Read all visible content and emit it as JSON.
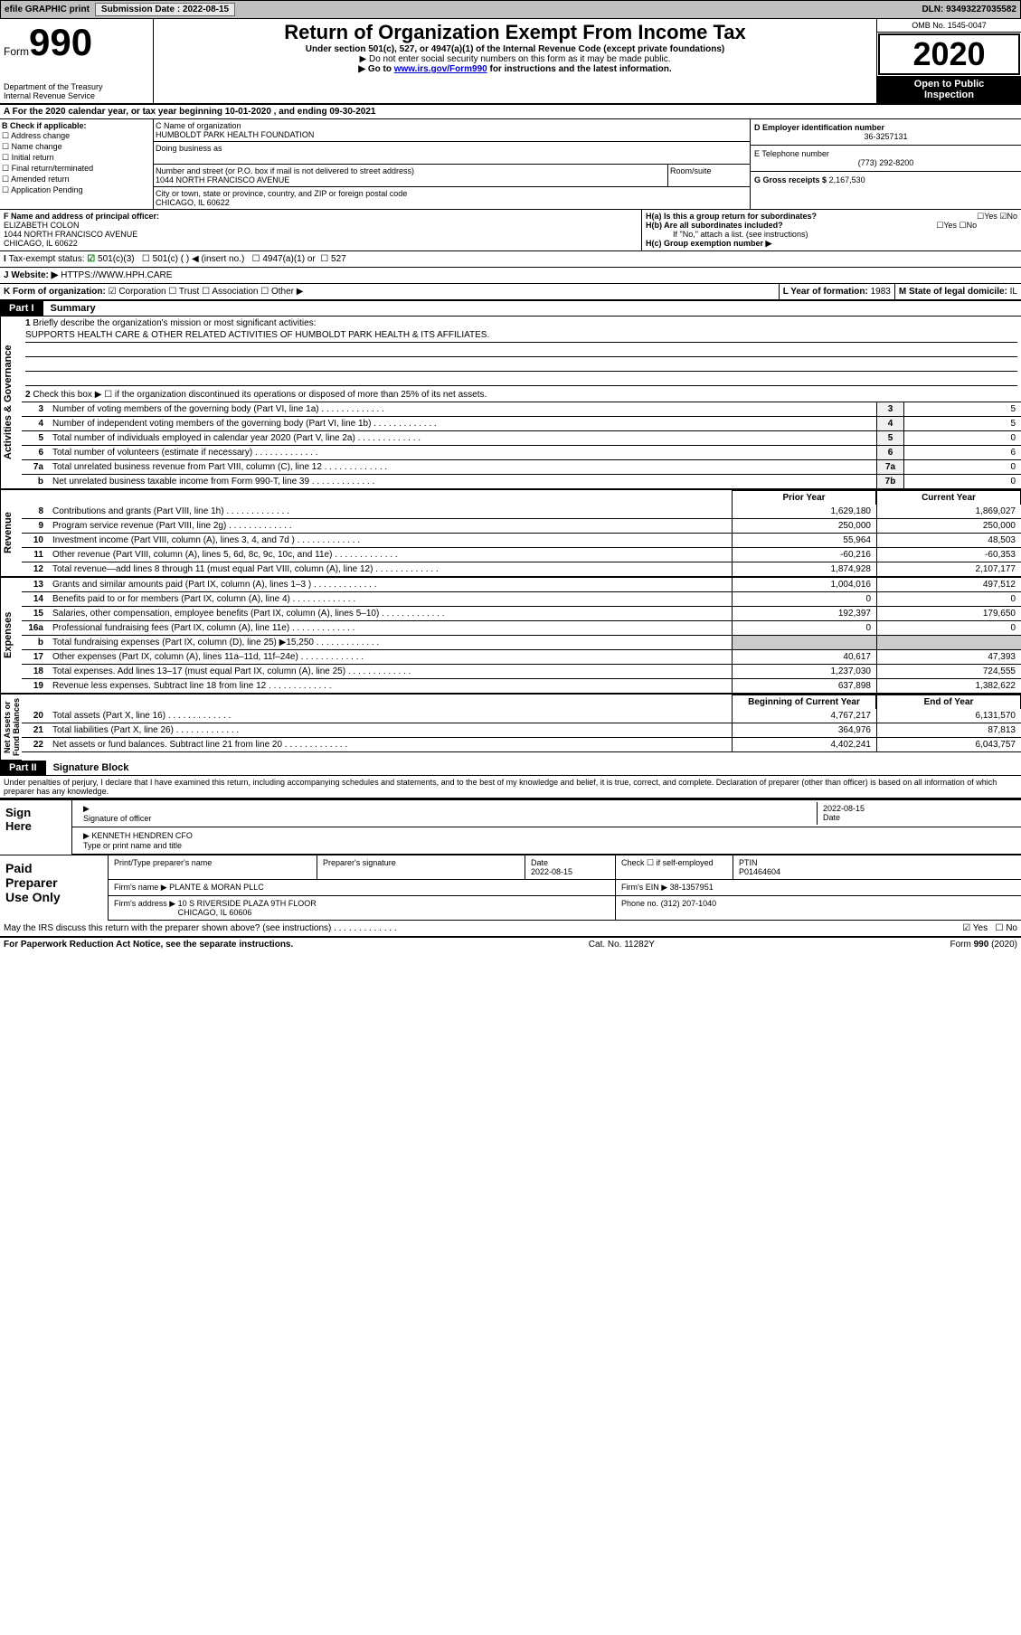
{
  "topbar": {
    "efile": "efile GRAPHIC print",
    "submission_label": "Submission Date :",
    "submission_date": "2022-08-15",
    "dln_label": "DLN:",
    "dln": "93493227035582"
  },
  "header": {
    "form_word": "Form",
    "form_number": "990",
    "title": "Return of Organization Exempt From Income Tax",
    "subtitle": "Under section 501(c), 527, or 4947(a)(1) of the Internal Revenue Code (except private foundations)",
    "note1": "▶ Do not enter social security numbers on this form as it may be made public.",
    "note2_prefix": "▶ Go to ",
    "note2_link": "www.irs.gov/Form990",
    "note2_suffix": " for instructions and the latest information.",
    "dept": "Department of the Treasury\nInternal Revenue Service",
    "omb": "OMB No. 1545-0047",
    "year": "2020",
    "open": "Open to Public\nInspection"
  },
  "row_a": "For the 2020 calendar year, or tax year beginning 10-01-2020  , and ending 09-30-2021",
  "section_b": {
    "label": "B Check if applicable:",
    "cb1": "Address change",
    "cb2": "Name change",
    "cb3": "Initial return",
    "cb4": "Final return/terminated",
    "cb5": "Amended return",
    "cb6": "Application Pending"
  },
  "section_c": {
    "name_label": "C Name of organization",
    "name": "HUMBOLDT PARK HEALTH FOUNDATION",
    "dba_label": "Doing business as",
    "addr_label": "Number and street (or P.O. box if mail is not delivered to street address)",
    "room_label": "Room/suite",
    "addr": "1044 NORTH FRANCISCO AVENUE",
    "city_label": "City or town, state or province, country, and ZIP or foreign postal code",
    "city": "CHICAGO, IL  60622"
  },
  "section_d": {
    "label": "D Employer identification number",
    "val": "36-3257131"
  },
  "section_e": {
    "label": "E Telephone number",
    "val": "(773) 292-8200"
  },
  "section_g": {
    "label": "G Gross receipts $",
    "val": "2,167,530"
  },
  "section_f": {
    "label": "F Name and address of principal officer:",
    "name": "ELIZABETH COLON",
    "addr": "1044 NORTH FRANCISCO AVENUE\nCHICAGO, IL  60622"
  },
  "section_h": {
    "ha": "H(a)  Is this a group return for subordinates?",
    "ha_yes": "Yes",
    "ha_no": "No",
    "hb": "H(b)  Are all subordinates included?",
    "hb_yes": "Yes",
    "hb_no": "No",
    "hb_note": "If \"No,\" attach a list. (see instructions)",
    "hc": "H(c)  Group exemption number ▶"
  },
  "row_i": {
    "label": "Tax-exempt status:",
    "c1": "501(c)(3)",
    "c2": "501(c) (  ) ◀ (insert no.)",
    "c3": "4947(a)(1) or",
    "c4": "527"
  },
  "row_j": {
    "label": "J",
    "text": "Website: ▶",
    "val": "HTTPS://WWW.HPH.CARE"
  },
  "row_k": {
    "label": "K Form of organization:",
    "c1": "Corporation",
    "c2": "Trust",
    "c3": "Association",
    "c4": "Other ▶",
    "l_label": "L Year of formation:",
    "l_val": "1983",
    "m_label": "M State of legal domicile:",
    "m_val": "IL"
  },
  "part1": {
    "header": "Part I",
    "title": "Summary",
    "line1_label": "1",
    "line1_text": "Briefly describe the organization's mission or most significant activities:",
    "line1_val": "SUPPORTS HEALTH CARE & OTHER RELATED ACTIVITIES OF HUMBOLDT PARK HEALTH & ITS AFFILIATES.",
    "line2_label": "2",
    "line2_text": "Check this box ▶ ☐  if the organization discontinued its operations or disposed of more than 25% of its net assets."
  },
  "vtabs": {
    "gov": "Activities & Governance",
    "rev": "Revenue",
    "exp": "Expenses",
    "net": "Net Assets or\nFund Balances"
  },
  "gov_lines": [
    {
      "n": "3",
      "t": "Number of voting members of the governing body (Part VI, line 1a)",
      "box": "3",
      "v": "5"
    },
    {
      "n": "4",
      "t": "Number of independent voting members of the governing body (Part VI, line 1b)",
      "box": "4",
      "v": "5"
    },
    {
      "n": "5",
      "t": "Total number of individuals employed in calendar year 2020 (Part V, line 2a)",
      "box": "5",
      "v": "0"
    },
    {
      "n": "6",
      "t": "Total number of volunteers (estimate if necessary)",
      "box": "6",
      "v": "6"
    },
    {
      "n": "7a",
      "t": "Total unrelated business revenue from Part VIII, column (C), line 12",
      "box": "7a",
      "v": "0"
    },
    {
      "n": "b",
      "t": "Net unrelated business taxable income from Form 990-T, line 39",
      "box": "7b",
      "v": "0"
    }
  ],
  "col_headers": {
    "prior": "Prior Year",
    "current": "Current Year",
    "begin": "Beginning of Current Year",
    "end": "End of Year"
  },
  "rev_lines": [
    {
      "n": "8",
      "t": "Contributions and grants (Part VIII, line 1h)",
      "p": "1,629,180",
      "c": "1,869,027"
    },
    {
      "n": "9",
      "t": "Program service revenue (Part VIII, line 2g)",
      "p": "250,000",
      "c": "250,000"
    },
    {
      "n": "10",
      "t": "Investment income (Part VIII, column (A), lines 3, 4, and 7d )",
      "p": "55,964",
      "c": "48,503"
    },
    {
      "n": "11",
      "t": "Other revenue (Part VIII, column (A), lines 5, 6d, 8c, 9c, 10c, and 11e)",
      "p": "-60,216",
      "c": "-60,353"
    },
    {
      "n": "12",
      "t": "Total revenue—add lines 8 through 11 (must equal Part VIII, column (A), line 12)",
      "p": "1,874,928",
      "c": "2,107,177"
    }
  ],
  "exp_lines": [
    {
      "n": "13",
      "t": "Grants and similar amounts paid (Part IX, column (A), lines 1–3 )",
      "p": "1,004,016",
      "c": "497,512"
    },
    {
      "n": "14",
      "t": "Benefits paid to or for members (Part IX, column (A), line 4)",
      "p": "0",
      "c": "0"
    },
    {
      "n": "15",
      "t": "Salaries, other compensation, employee benefits (Part IX, column (A), lines 5–10)",
      "p": "192,397",
      "c": "179,650"
    },
    {
      "n": "16a",
      "t": "Professional fundraising fees (Part IX, column (A), line 11e)",
      "p": "0",
      "c": "0"
    },
    {
      "n": "b",
      "t": "Total fundraising expenses (Part IX, column (D), line 25) ▶15,250",
      "p": "",
      "c": ""
    },
    {
      "n": "17",
      "t": "Other expenses (Part IX, column (A), lines 11a–11d, 11f–24e)",
      "p": "40,617",
      "c": "47,393"
    },
    {
      "n": "18",
      "t": "Total expenses. Add lines 13–17 (must equal Part IX, column (A), line 25)",
      "p": "1,237,030",
      "c": "724,555"
    },
    {
      "n": "19",
      "t": "Revenue less expenses. Subtract line 18 from line 12",
      "p": "637,898",
      "c": "1,382,622"
    }
  ],
  "net_lines": [
    {
      "n": "20",
      "t": "Total assets (Part X, line 16)",
      "p": "4,767,217",
      "c": "6,131,570"
    },
    {
      "n": "21",
      "t": "Total liabilities (Part X, line 26)",
      "p": "364,976",
      "c": "87,813"
    },
    {
      "n": "22",
      "t": "Net assets or fund balances. Subtract line 21 from line 20",
      "p": "4,402,241",
      "c": "6,043,757"
    }
  ],
  "part2": {
    "header": "Part II",
    "title": "Signature Block",
    "declaration": "Under penalties of perjury, I declare that I have examined this return, including accompanying schedules and statements, and to the best of my knowledge and belief, it is true, correct, and complete. Declaration of preparer (other than officer) is based on all information of which preparer has any knowledge."
  },
  "sign": {
    "left": "Sign\nHere",
    "sig_label": "Signature of officer",
    "date_label": "Date",
    "date_val": "2022-08-15",
    "name": "KENNETH HENDREN  CFO",
    "name_label": "Type or print name and title"
  },
  "preparer": {
    "left": "Paid\nPreparer\nUse Only",
    "h1": "Print/Type preparer's name",
    "h2": "Preparer's signature",
    "h3": "Date",
    "h3v": "2022-08-15",
    "h4": "Check ☐ if self-employed",
    "h5": "PTIN",
    "h5v": "P01464604",
    "firm_label": "Firm's name    ▶",
    "firm": "PLANTE & MORAN PLLC",
    "ein_label": "Firm's EIN ▶",
    "ein": "38-1357951",
    "addr_label": "Firm's address ▶",
    "addr": "10 S RIVERSIDE PLAZA 9TH FLOOR\nCHICAGO, IL  60606",
    "phone_label": "Phone no.",
    "phone": "(312) 207-1040"
  },
  "discuss": {
    "text": "May the IRS discuss this return with the preparer shown above? (see instructions)",
    "yes": "Yes",
    "no": "No"
  },
  "footer": {
    "left": "For Paperwork Reduction Act Notice, see the separate instructions.",
    "mid": "Cat. No. 11282Y",
    "right_form": "Form ",
    "right_num": "990",
    "right_year": " (2020)"
  }
}
